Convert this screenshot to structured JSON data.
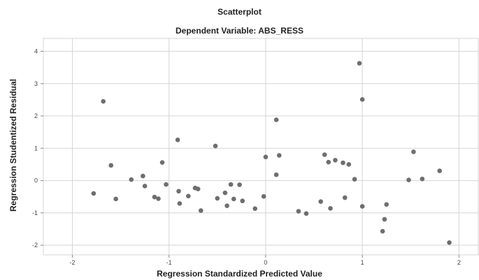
{
  "chart_data": {
    "type": "scatter",
    "title": "Scatterplot",
    "subtitle": "Dependent Variable: ABS_RESS",
    "xlabel": "Regression Standardized Predicted Value",
    "ylabel": "Regression Studentized Residual",
    "xlim": [
      -2.3,
      2.2
    ],
    "ylim": [
      -2.3,
      4.4
    ],
    "xticks": [
      -2,
      -1,
      0,
      1,
      2
    ],
    "yticks": [
      -2,
      -1,
      0,
      1,
      2,
      3,
      4
    ],
    "grid": true,
    "point_color": "#6e6e6e",
    "grid_color": "#d4d4d4",
    "series": [
      {
        "x": [
          -1.78,
          -1.68,
          -1.6,
          -1.55,
          -1.39,
          -1.27,
          -1.25,
          -1.15,
          -1.11,
          -1.07,
          -1.03,
          -0.91,
          -0.9,
          -0.89,
          -0.8,
          -0.73,
          -0.7,
          -0.67,
          -0.52,
          -0.5,
          -0.42,
          -0.4,
          -0.36,
          -0.33,
          -0.27,
          -0.24,
          -0.11,
          -0.02,
          0.0,
          0.11,
          0.11,
          0.14,
          0.34,
          0.42,
          0.57,
          0.61,
          0.65,
          0.67,
          0.72,
          0.8,
          0.86,
          0.92,
          0.97,
          1.0,
          1.0,
          0.82,
          1.21,
          1.23,
          1.25,
          1.48,
          1.53,
          1.62,
          1.8,
          1.9
        ],
        "y": [
          -0.4,
          2.45,
          0.47,
          -0.57,
          0.03,
          0.14,
          -0.17,
          -0.51,
          -0.56,
          0.56,
          -0.12,
          1.26,
          -0.33,
          -0.71,
          -0.48,
          -0.23,
          -0.26,
          -0.93,
          1.07,
          -0.55,
          -0.38,
          -0.78,
          -0.12,
          -0.57,
          -0.13,
          -0.63,
          -0.87,
          -0.49,
          0.73,
          1.88,
          0.18,
          0.78,
          -0.95,
          -1.02,
          -0.65,
          0.8,
          0.57,
          -0.86,
          0.63,
          0.55,
          0.5,
          0.04,
          3.63,
          2.51,
          -0.8,
          -0.53,
          -1.57,
          -1.2,
          -0.74,
          0.02,
          0.89,
          0.05,
          0.3,
          -1.92
        ]
      }
    ]
  }
}
